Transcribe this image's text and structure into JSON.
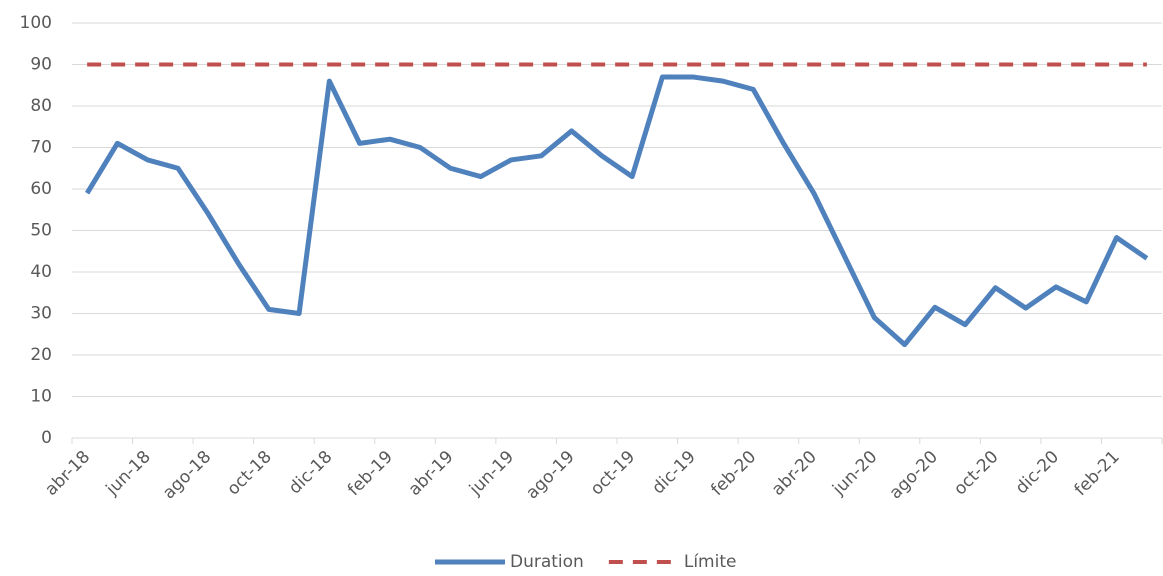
{
  "chart_data": {
    "type": "line",
    "categories": [
      "abr-18",
      null,
      "jun-18",
      null,
      "ago-18",
      null,
      "oct-18",
      null,
      "dic-18",
      null,
      "feb-19",
      null,
      "abr-19",
      null,
      "jun-19",
      null,
      "ago-19",
      null,
      "oct-19",
      null,
      "dic-19",
      null,
      "feb-20",
      null,
      "abr-20",
      null,
      "jun-20",
      null,
      "ago-20",
      null,
      "oct-20",
      null,
      "dic-20",
      null,
      "feb-21",
      null
    ],
    "series": [
      {
        "name": "Duration",
        "color": "#4f81bd",
        "values": [
          59,
          71,
          67,
          65,
          54,
          42,
          31,
          30,
          86,
          71,
          72,
          70,
          65,
          63,
          67,
          68,
          74,
          68,
          63,
          87,
          87,
          86,
          84,
          71,
          59,
          44,
          29,
          22.5,
          31.5,
          27.3,
          36.2,
          31.3,
          36.4,
          32.8,
          48.3,
          43.3
        ]
      },
      {
        "name": "Límite",
        "color": "#c0504d",
        "dashed": true,
        "values": [
          90,
          90,
          90,
          90,
          90,
          90,
          90,
          90,
          90,
          90,
          90,
          90,
          90,
          90,
          90,
          90,
          90,
          90,
          90,
          90,
          90,
          90,
          90,
          90,
          90,
          90,
          90,
          90,
          90,
          90,
          90,
          90,
          90,
          90,
          90,
          90
        ]
      }
    ],
    "ylim": [
      0,
      100
    ],
    "yticks": [
      0,
      10,
      20,
      30,
      40,
      50,
      60,
      70,
      80,
      90,
      100
    ],
    "grid": true,
    "legend": "bottom"
  }
}
